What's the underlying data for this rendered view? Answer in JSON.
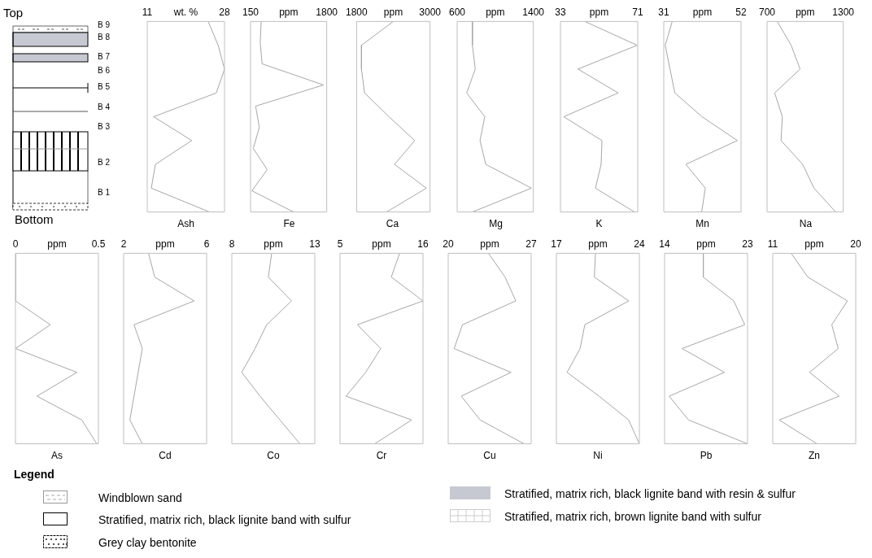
{
  "chart_data": [
    {
      "type": "other",
      "annotations": [
        "Top",
        "B 9",
        "B 8",
        "B 7",
        "B 6",
        "B 5",
        "B 4",
        "B 3",
        "B 2",
        "B 1",
        "Bottom"
      ]
    },
    {
      "type": "line",
      "orientation": "horizontal",
      "title": "Ash",
      "xlabel": "wt. %",
      "xlim": [
        11,
        28
      ],
      "xticks": [
        11,
        28
      ],
      "color": "#a6a6a6",
      "categories": [
        null,
        null,
        null,
        null,
        null,
        null,
        null,
        null,
        null
      ],
      "values": [
        24.4,
        26.6,
        28,
        26.2,
        12.4,
        20.8,
        12.8,
        11.9,
        24.7
      ]
    },
    {
      "type": "line",
      "orientation": "horizontal",
      "title": "Fe",
      "xlabel": "ppm",
      "xlim": [
        150,
        1800
      ],
      "xticks": [
        150,
        1800
      ],
      "color": "#a6a6a6",
      "categories": [
        null,
        null,
        null,
        null,
        null,
        null,
        null,
        null,
        null,
        null
      ],
      "values": [
        380,
        360,
        400,
        1730,
        260,
        340,
        210,
        510,
        180,
        1080
      ]
    },
    {
      "type": "line",
      "orientation": "horizontal",
      "title": "Ca",
      "xlabel": "ppm",
      "xlim": [
        1800,
        3000
      ],
      "xticks": [
        1800,
        3000
      ],
      "color": "#a6a6a6",
      "categories": [
        null,
        null,
        null,
        null,
        null,
        null,
        null,
        null,
        null
      ],
      "values": [
        2400,
        1880,
        1880,
        1930,
        2330,
        2750,
        2420,
        2940,
        2290
      ]
    },
    {
      "type": "line",
      "orientation": "horizontal",
      "title": "Mg",
      "xlabel": "ppm",
      "xlim": [
        600,
        1400
      ],
      "xticks": [
        600,
        1400
      ],
      "color": "#a6a6a6",
      "categories": [
        null,
        null,
        null,
        null,
        null,
        null,
        null,
        null,
        null
      ],
      "values": [
        760,
        760,
        790,
        700,
        890,
        840,
        900,
        1380,
        760
      ]
    },
    {
      "type": "line",
      "orientation": "horizontal",
      "title": "K",
      "xlabel": "ppm",
      "xlim": [
        33,
        71
      ],
      "xticks": [
        33,
        71
      ],
      "color": "#a6a6a6",
      "categories": [
        null,
        null,
        null,
        null,
        null,
        null,
        null,
        null,
        null
      ],
      "values": [
        45,
        70.7,
        41.6,
        61.4,
        34.6,
        53.4,
        53,
        50.2,
        69.4
      ]
    },
    {
      "type": "line",
      "orientation": "horizontal",
      "title": "Mn",
      "xlabel": "ppm",
      "xlim": [
        31,
        52
      ],
      "xticks": [
        31,
        52
      ],
      "color": "#a6a6a6",
      "categories": [
        null,
        null,
        null,
        null,
        null,
        null,
        null,
        null,
        null
      ],
      "values": [
        33.3,
        31.4,
        32.7,
        34,
        41.4,
        51,
        37,
        42.3,
        41.3
      ]
    },
    {
      "type": "line",
      "orientation": "horizontal",
      "title": "Na",
      "xlabel": "ppm",
      "xlim": [
        700,
        1300
      ],
      "xticks": [
        700,
        1300
      ],
      "color": "#a6a6a6",
      "categories": [
        null,
        null,
        null,
        null,
        null,
        null,
        null,
        null,
        null
      ],
      "values": [
        780,
        890,
        960,
        760,
        820,
        810,
        980,
        1070,
        1240
      ]
    },
    {
      "type": "line",
      "orientation": "horizontal",
      "title": "As",
      "xlabel": "ppm",
      "xlim": [
        0,
        0.5
      ],
      "xticks": [
        0,
        0.5
      ],
      "color": "#a6a6a6",
      "categories": [
        null,
        null,
        null,
        null,
        null,
        null,
        null,
        null,
        null
      ],
      "values": [
        0,
        0,
        0,
        0.21,
        0,
        0.37,
        0.13,
        0.4,
        0.49
      ]
    },
    {
      "type": "line",
      "orientation": "horizontal",
      "title": "Cd",
      "xlabel": "ppm",
      "xlim": [
        2,
        6
      ],
      "xticks": [
        2,
        6
      ],
      "color": "#a6a6a6",
      "categories": [
        null,
        null,
        null,
        null,
        null,
        null,
        null,
        null,
        null
      ],
      "values": [
        3.2,
        3.5,
        5.4,
        2.5,
        2.9,
        2.7,
        2.5,
        2.3,
        2.9
      ]
    },
    {
      "type": "line",
      "orientation": "horizontal",
      "title": "Co",
      "xlabel": "ppm",
      "xlim": [
        8,
        13
      ],
      "xticks": [
        8,
        13
      ],
      "color": "#a6a6a6",
      "categories": [
        null,
        null,
        null,
        null,
        null,
        null,
        null,
        null,
        null
      ],
      "values": [
        10.4,
        10.2,
        11.6,
        10.1,
        9.4,
        8.6,
        9.7,
        10.9,
        12.1
      ]
    },
    {
      "type": "line",
      "orientation": "horizontal",
      "title": "Cr",
      "xlabel": "ppm",
      "xlim": [
        5,
        16
      ],
      "xticks": [
        5,
        16
      ],
      "color": "#a6a6a6",
      "categories": [
        null,
        null,
        null,
        null,
        null,
        null,
        null,
        null,
        null
      ],
      "values": [
        12.9,
        11.8,
        16,
        7.3,
        10.4,
        8.4,
        5.8,
        14.5,
        9.6
      ]
    },
    {
      "type": "line",
      "orientation": "horizontal",
      "title": "Cu",
      "xlabel": "ppm",
      "xlim": [
        20,
        27
      ],
      "xticks": [
        20,
        27
      ],
      "color": "#a6a6a6",
      "categories": [
        null,
        null,
        null,
        null,
        null,
        null,
        null,
        null,
        null
      ],
      "values": [
        23.4,
        24.8,
        25.7,
        21.2,
        20.5,
        25.3,
        21.1,
        22.7,
        26.4
      ]
    },
    {
      "type": "line",
      "orientation": "horizontal",
      "title": "Ni",
      "xlabel": "ppm",
      "xlim": [
        17,
        24
      ],
      "xticks": [
        17,
        24
      ],
      "color": "#a6a6a6",
      "categories": [
        null,
        null,
        null,
        null,
        null,
        null,
        null,
        null,
        null
      ],
      "values": [
        20.3,
        20.2,
        23.1,
        19.4,
        19,
        17.9,
        20.6,
        23.1,
        24
      ]
    },
    {
      "type": "line",
      "orientation": "horizontal",
      "title": "Pb",
      "xlabel": "ppm",
      "xlim": [
        14,
        23
      ],
      "xticks": [
        14,
        23
      ],
      "color": "#a6a6a6",
      "categories": [
        null,
        null,
        null,
        null,
        null,
        null,
        null,
        null,
        null
      ],
      "values": [
        18.2,
        18.2,
        21.5,
        22.7,
        15.9,
        20.5,
        14.5,
        16.6,
        23
      ]
    },
    {
      "type": "line",
      "orientation": "horizontal",
      "title": "Zn",
      "xlabel": "ppm",
      "xlim": [
        11,
        20
      ],
      "xticks": [
        11,
        20
      ],
      "color": "#a6a6a6",
      "categories": [
        null,
        null,
        null,
        null,
        null,
        null,
        null,
        null,
        null
      ],
      "values": [
        13,
        14.8,
        19.1,
        17.4,
        18.1,
        15,
        18.2,
        11.7,
        15.8
      ]
    },
    {
      "type": "other",
      "title": "Legend",
      "annotations": [
        "Windblown sand",
        "Stratified, matrix rich, black lignite band with sulfur",
        "Grey clay bentonite",
        "Stratified, matrix rich, black lignite band with resin & sulfur",
        "Stratified, matrix rich, brown lignite band with sulfur"
      ]
    }
  ]
}
